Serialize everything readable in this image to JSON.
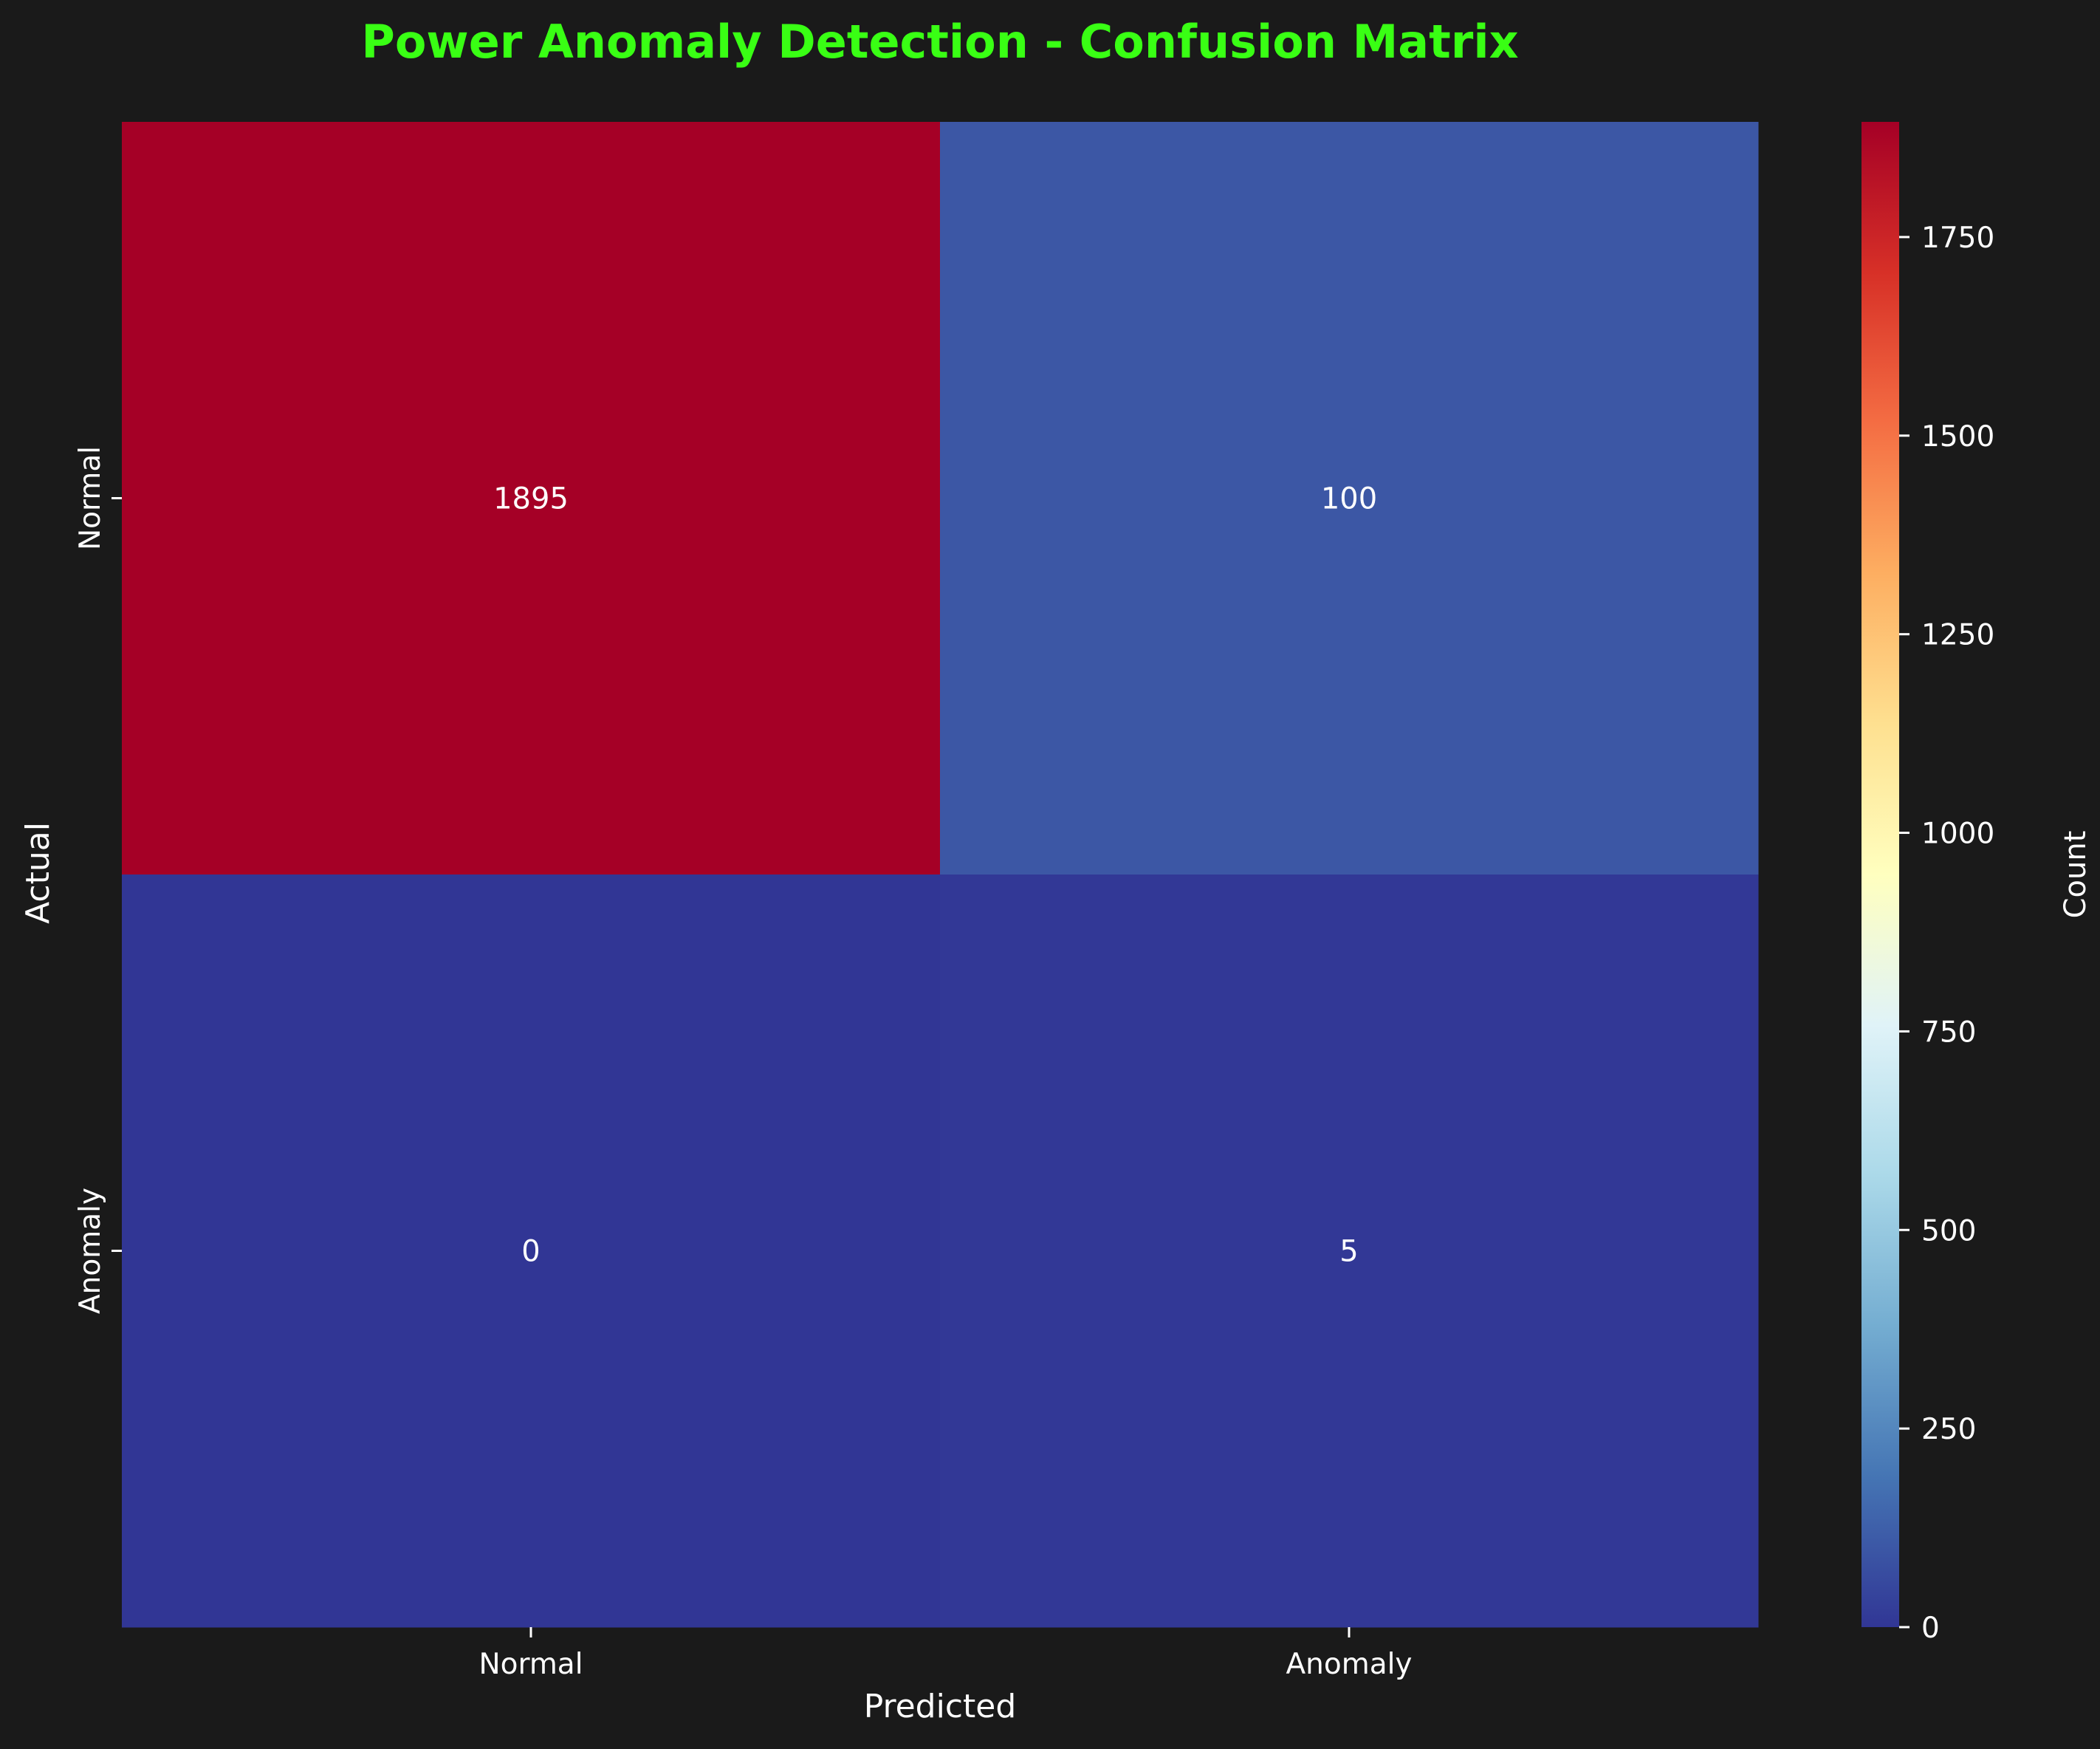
{
  "chart_data": {
    "type": "heatmap",
    "title": "Power Anomaly Detection - Confusion Matrix",
    "xlabel": "Predicted",
    "ylabel": "Actual",
    "x_categories": [
      "Normal",
      "Anomaly"
    ],
    "y_categories": [
      "Normal",
      "Anomaly"
    ],
    "values": [
      [
        1895,
        100
      ],
      [
        0,
        5
      ]
    ],
    "colorbar": {
      "label": "Count",
      "range": [
        0,
        1895
      ],
      "ticks": [
        "0",
        "250",
        "500",
        "750",
        "1000",
        "1250",
        "1500",
        "1750"
      ],
      "colormap": "RdYlBu_r"
    },
    "grid": false
  },
  "colors": {
    "background": "#1a1a1a",
    "title": "#39ff14",
    "text": "#ffffff"
  }
}
